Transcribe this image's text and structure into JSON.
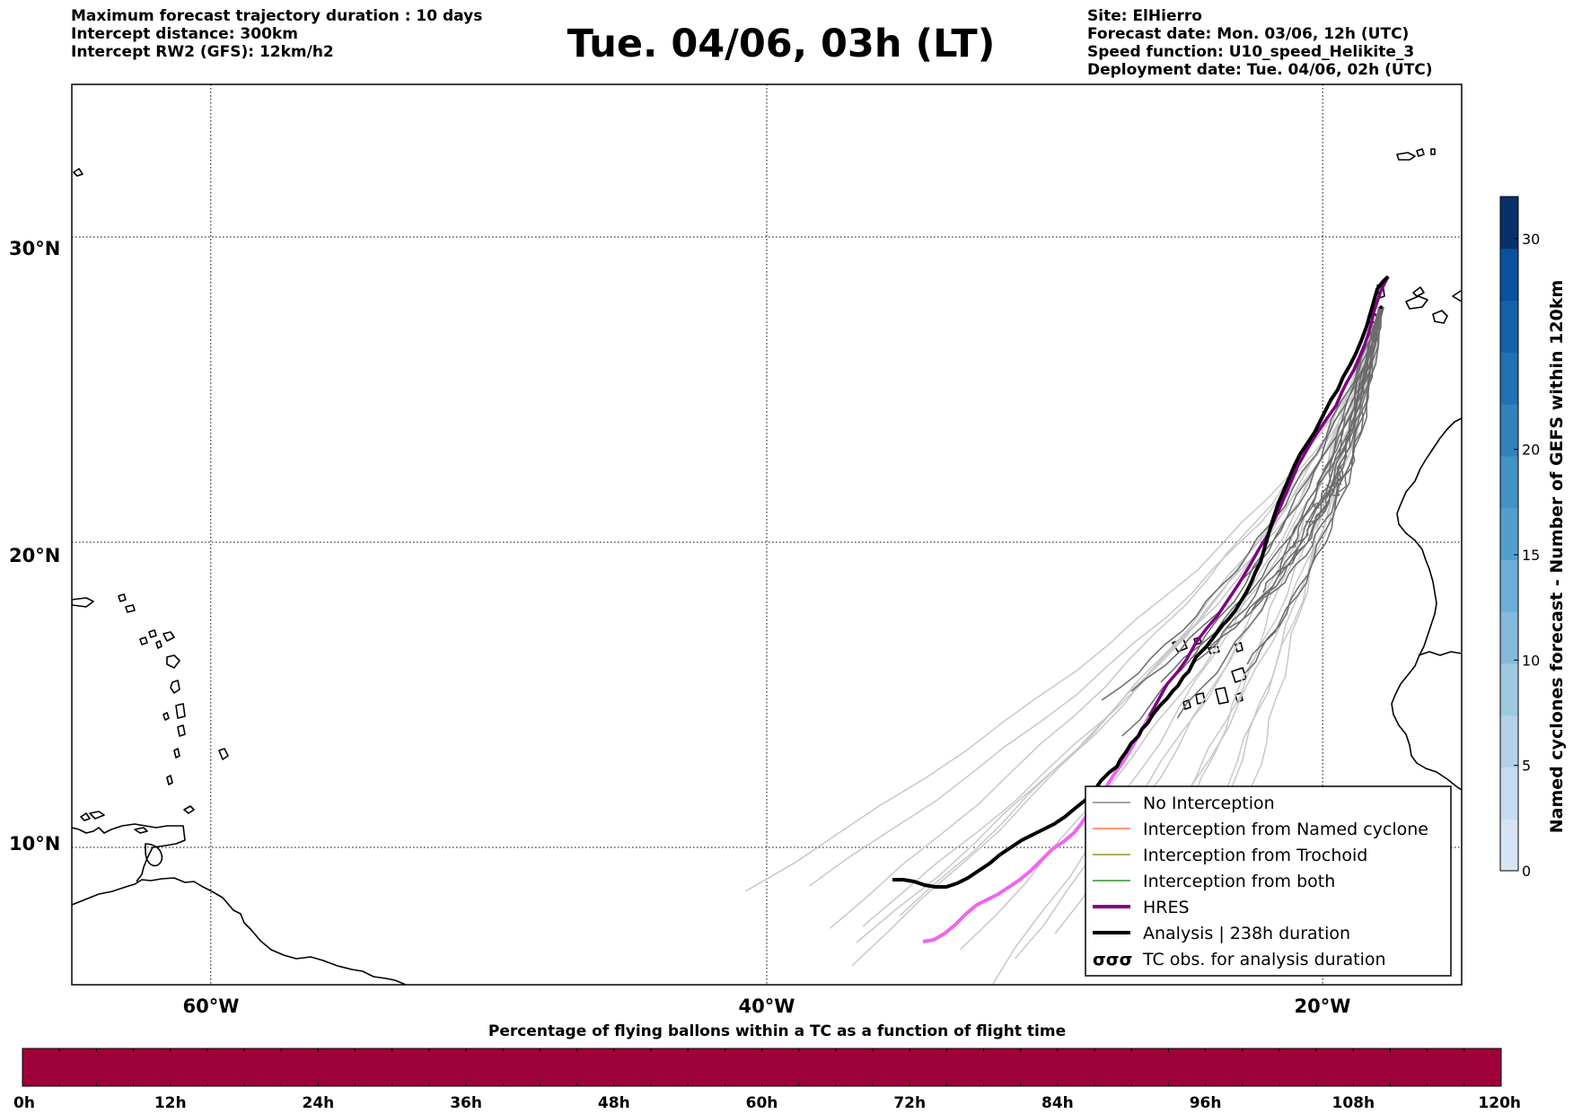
{
  "header": {
    "left": [
      "Maximum forecast trajectory duration : 10 days",
      "Intercept distance: 300km",
      "Intercept RW2 (GFS):  12km/h2"
    ],
    "title": "Tue. 04/06, 03h (LT)",
    "right": [
      "Site: ElHierro",
      "Forecast date: Mon. 03/06, 12h (UTC)",
      "Speed function: U10_speed_Helikite_3",
      "Deployment date: Tue. 04/06, 02h (UTC)"
    ]
  },
  "map": {
    "lat_labels": [
      {
        "value": 30,
        "label": "30°N"
      },
      {
        "value": 20,
        "label": "20°N"
      },
      {
        "value": 10,
        "label": "10°N"
      }
    ],
    "lon_labels": [
      {
        "value": -60,
        "label": "60°W"
      },
      {
        "value": -40,
        "label": "40°W"
      },
      {
        "value": -20,
        "label": "20°W"
      }
    ],
    "extent": {
      "lon_min": -65,
      "lon_max": -15,
      "lat_min": 5.5,
      "lat_max": 35
    },
    "launch_site": {
      "lon": -17.9,
      "lat": 27.7
    },
    "colors": {
      "no_interception": "#6b6b6b",
      "no_interception_light": "#c8c8c8",
      "named_cyclone": "#ff5a1f",
      "trochoid": "#808000",
      "both": "#008000",
      "hres": "#800080",
      "hres_light": "#ee66ee",
      "analysis": "#000000"
    }
  },
  "legend": {
    "items": [
      {
        "label": "No Interception",
        "style": "thin",
        "color": "#6b6b6b"
      },
      {
        "label": "Interception from Named cyclone",
        "style": "thin",
        "color": "#ff5a1f"
      },
      {
        "label": "Interception from Trochoid",
        "style": "thin",
        "color": "#808000"
      },
      {
        "label": "Interception from both",
        "style": "thin",
        "color": "#008000"
      },
      {
        "label": "HRES",
        "style": "thick",
        "color": "#800080"
      },
      {
        "label": "Analysis | 238h duration",
        "style": "thick",
        "color": "#000000"
      },
      {
        "label": "TC obs. for analysis duration",
        "style": "symbol",
        "symbol": "σσσ",
        "color": "#000000"
      }
    ]
  },
  "colorbar": {
    "label": "Named cyclones forecast - Number of GEFS within 120km",
    "min": 0,
    "max": 32,
    "ticks": [
      0,
      5,
      10,
      15,
      20,
      30
    ],
    "colors": [
      "#d6e4f3",
      "#c6dbef",
      "#b3d1e9",
      "#9ecae1",
      "#84b9dc",
      "#6baed6",
      "#519fce",
      "#4292c6",
      "#3182bd",
      "#2171b5",
      "#1361a9",
      "#08519c",
      "#08306b"
    ]
  },
  "bottom_bar": {
    "title": "Percentage of flying ballons within a TC as a function of flight time",
    "ticks": [
      "0h",
      "12h",
      "24h",
      "36h",
      "48h",
      "60h",
      "72h",
      "84h",
      "96h",
      "108h",
      "120h"
    ],
    "minor_ticks_per_interval": 4,
    "values_percent": [
      0,
      0,
      0,
      0,
      0,
      0,
      0,
      0,
      0,
      0,
      0,
      0,
      0,
      0,
      0,
      0,
      0,
      0,
      0,
      0,
      0,
      0,
      0,
      0,
      0,
      0,
      0,
      0,
      0,
      0,
      0,
      0,
      0,
      0,
      0,
      0,
      0,
      0,
      0,
      0
    ],
    "fill_color": "#9e003a"
  }
}
